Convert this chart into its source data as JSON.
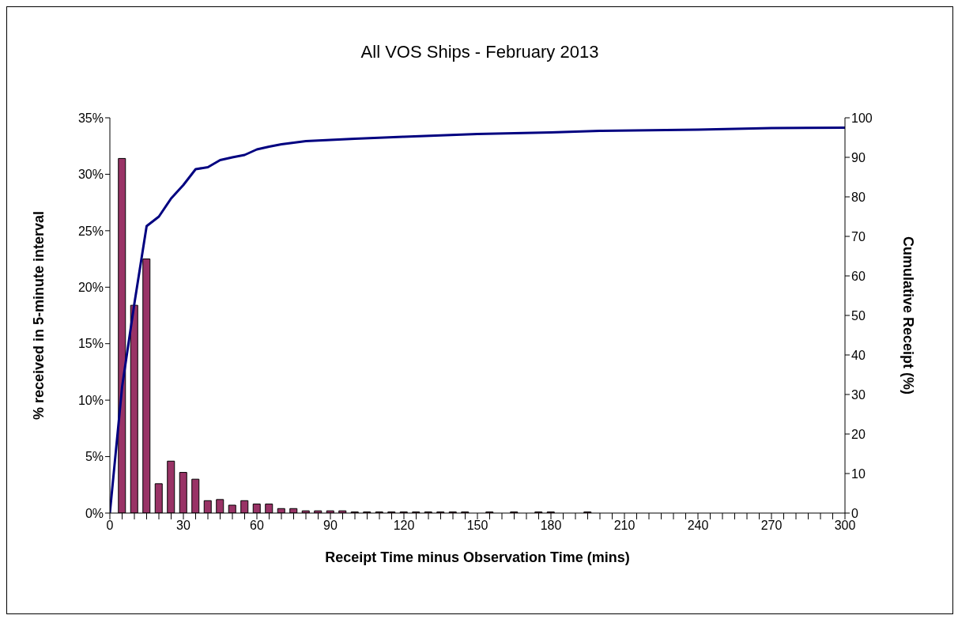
{
  "chart_data": {
    "type": "bar",
    "title": "All VOS Ships - February 2013",
    "xlabel": "Receipt Time minus Observation Time (mins)",
    "ylabel": "%  received in 5-minute interval",
    "y2label": "Cumulative Receipt (%)",
    "series": [
      {
        "color": "#993366",
        "x": [
          5,
          10,
          15,
          20,
          25,
          30,
          35,
          40,
          45,
          50,
          55,
          60,
          65,
          70,
          75,
          80,
          85,
          90,
          95,
          100,
          105,
          110,
          115,
          120,
          125,
          130,
          135,
          140,
          145,
          155,
          165,
          175,
          180,
          195
        ],
        "values": [
          31.4,
          18.4,
          22.5,
          2.6,
          4.6,
          3.6,
          3.0,
          1.1,
          1.2,
          0.7,
          1.1,
          0.8,
          0.8,
          0.4,
          0.4,
          0.2,
          0.2,
          0.2,
          0.2,
          0.1,
          0.1,
          0.1,
          0.1,
          0.1,
          0.1,
          0.1,
          0.1,
          0.1,
          0.1,
          0.1,
          0.1,
          0.1,
          0.1,
          0.1
        ]
      },
      {
        "type": "line",
        "axis": "y2",
        "color": "#000080",
        "x": [
          0,
          5,
          10,
          15,
          20,
          25,
          30,
          35,
          40,
          45,
          50,
          55,
          60,
          65,
          70,
          80,
          90,
          100,
          120,
          150,
          180,
          200,
          240,
          270,
          300
        ],
        "values": [
          0,
          32,
          53,
          72.6,
          75,
          79.6,
          83,
          87,
          87.5,
          89.3,
          90,
          90.6,
          92,
          92.7,
          93.3,
          94.1,
          94.4,
          94.7,
          95.2,
          95.9,
          96.3,
          96.7,
          97,
          97.4,
          97.5
        ]
      }
    ],
    "xlim": [
      0,
      300
    ],
    "xticks": [
      0,
      {
        "value": 5,
        "label": null
      },
      {
        "value": 10,
        "label": null
      },
      {
        "value": 15,
        "label": null
      },
      {
        "value": 20,
        "label": null
      },
      {
        "value": 25,
        "label": null
      },
      30,
      {
        "value": 35,
        "label": null
      },
      {
        "value": 40,
        "label": null
      },
      {
        "value": 45,
        "label": null
      },
      {
        "value": 50,
        "label": null
      },
      {
        "value": 55,
        "label": null
      },
      60,
      {
        "value": 65,
        "label": null
      },
      {
        "value": 70,
        "label": null
      },
      {
        "value": 75,
        "label": null
      },
      {
        "value": 80,
        "label": null
      },
      {
        "value": 85,
        "label": null
      },
      90,
      {
        "value": 95,
        "label": null
      },
      {
        "value": 100,
        "label": null
      },
      {
        "value": 105,
        "label": null
      },
      {
        "value": 110,
        "label": null
      },
      {
        "value": 115,
        "label": null
      },
      120,
      {
        "value": 125,
        "label": null
      },
      {
        "value": 130,
        "label": null
      },
      {
        "value": 135,
        "label": null
      },
      {
        "value": 140,
        "label": null
      },
      {
        "value": 145,
        "label": null
      },
      150,
      {
        "value": 155,
        "label": null
      },
      {
        "value": 160,
        "label": null
      },
      {
        "value": 165,
        "label": null
      },
      {
        "value": 170,
        "label": null
      },
      {
        "value": 175,
        "label": null
      },
      180,
      {
        "value": 185,
        "label": null
      },
      {
        "value": 190,
        "label": null
      },
      {
        "value": 195,
        "label": null
      },
      {
        "value": 200,
        "label": null
      },
      {
        "value": 205,
        "label": null
      },
      210,
      {
        "value": 215,
        "label": null
      },
      {
        "value": 220,
        "label": null
      },
      {
        "value": 225,
        "label": null
      },
      {
        "value": 230,
        "label": null
      },
      {
        "value": 235,
        "label": null
      },
      240,
      {
        "value": 245,
        "label": null
      },
      {
        "value": 250,
        "label": null
      },
      {
        "value": 255,
        "label": null
      },
      {
        "value": 260,
        "label": null
      },
      {
        "value": 265,
        "label": null
      },
      270,
      {
        "value": 275,
        "label": null
      },
      {
        "value": 280,
        "label": null
      },
      {
        "value": 285,
        "label": null
      },
      {
        "value": 290,
        "label": null
      },
      {
        "value": 295,
        "label": null
      },
      300
    ],
    "ylim": [
      0,
      35
    ],
    "yticks": [
      {
        "value": 0,
        "label": "0%"
      },
      {
        "value": 5,
        "label": "5%"
      },
      {
        "value": 10,
        "label": "10%"
      },
      {
        "value": 15,
        "label": "15%"
      },
      {
        "value": 20,
        "label": "20%"
      },
      {
        "value": 25,
        "label": "25%"
      },
      {
        "value": 30,
        "label": "30%"
      },
      {
        "value": 35,
        "label": "35%"
      }
    ],
    "y2lim": [
      0,
      100
    ],
    "y2ticks": [
      0,
      10,
      20,
      30,
      40,
      50,
      60,
      70,
      80,
      90,
      100
    ],
    "grid": false
  }
}
